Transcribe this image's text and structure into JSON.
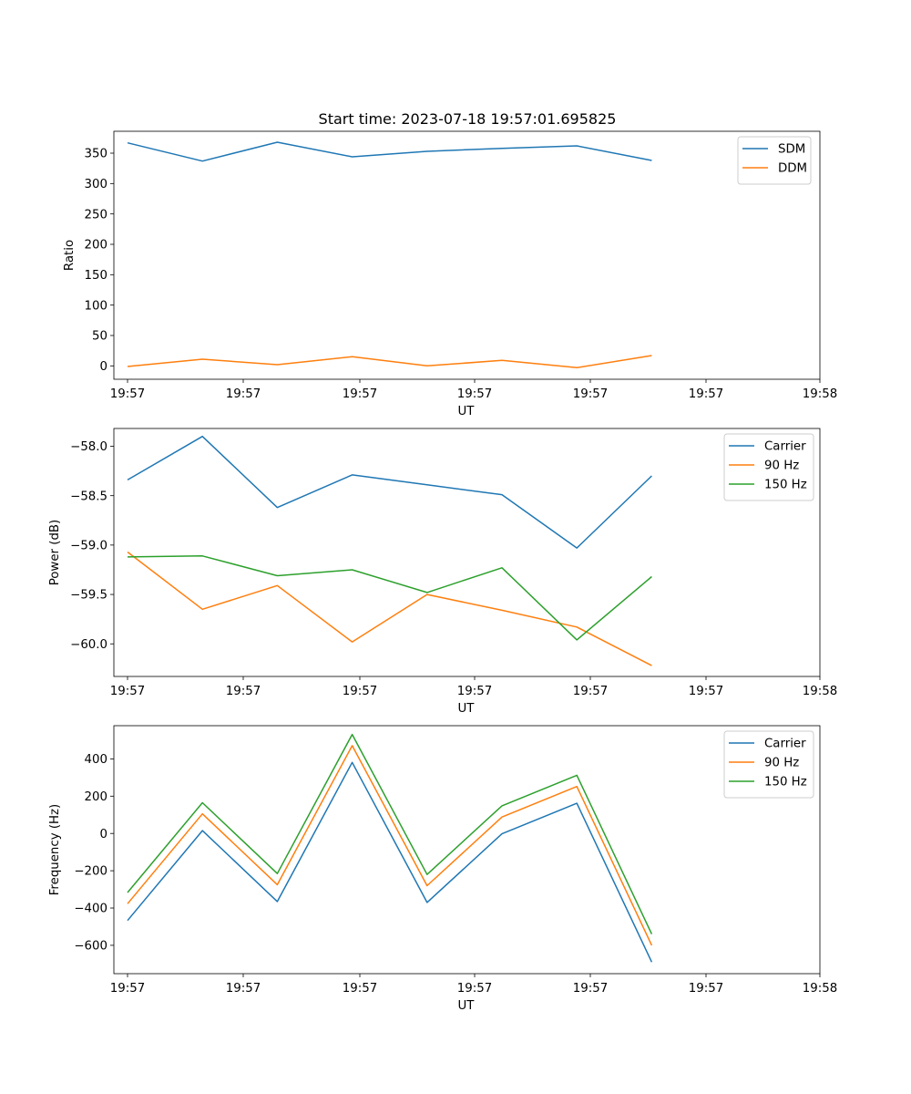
{
  "figure_title": "Start time: 2023-07-18 19:57:01.695825",
  "chart_data": [
    {
      "type": "line",
      "title": "Start time: 2023-07-18 19:57:01.695825",
      "xlabel": "UT",
      "ylabel": "Ratio",
      "x_tick_labels": [
        "19:57",
        "19:57",
        "19:57",
        "19:57",
        "19:57",
        "19:57",
        "19:58"
      ],
      "y_ticks": [
        0,
        50,
        100,
        150,
        200,
        250,
        300,
        350
      ],
      "y_tick_labels": [
        "0",
        "50",
        "100",
        "150",
        "200",
        "250",
        "300",
        "350"
      ],
      "ylim": [
        -22,
        386
      ],
      "x": [
        1,
        2,
        3,
        4,
        5,
        6,
        7,
        8
      ],
      "series": [
        {
          "name": "SDM",
          "color": "#1f77b4",
          "values": [
            367,
            337,
            368,
            344,
            353,
            358,
            362,
            338
          ]
        },
        {
          "name": "DDM",
          "color": "#ff7f0e",
          "values": [
            -1,
            11,
            2,
            15,
            0,
            9,
            -3,
            17
          ]
        }
      ],
      "legend": "top-right"
    },
    {
      "type": "line",
      "title": "",
      "xlabel": "UT",
      "ylabel": "Power (dB)",
      "x_tick_labels": [
        "19:57",
        "19:57",
        "19:57",
        "19:57",
        "19:57",
        "19:57",
        "19:58"
      ],
      "y_ticks": [
        -58.0,
        -58.5,
        -59.0,
        -59.5,
        -60.0
      ],
      "y_tick_labels": [
        "−58.0",
        "−58.5",
        "−59.0",
        "−59.5",
        "−60.0"
      ],
      "ylim": [
        -60.33,
        -57.82
      ],
      "x": [
        1,
        2,
        3,
        4,
        5,
        6,
        7,
        8
      ],
      "series": [
        {
          "name": "Carrier",
          "color": "#1f77b4",
          "values": [
            -58.34,
            -57.9,
            -58.62,
            -58.29,
            -58.39,
            -58.49,
            -59.03,
            -58.3
          ]
        },
        {
          "name": "90 Hz",
          "color": "#ff7f0e",
          "values": [
            -59.07,
            -59.65,
            -59.41,
            -59.98,
            -59.5,
            -59.66,
            -59.83,
            -60.22
          ]
        },
        {
          "name": "150 Hz",
          "color": "#2ca02c",
          "values": [
            -59.12,
            -59.11,
            -59.31,
            -59.25,
            -59.48,
            -59.23,
            -59.96,
            -59.32
          ]
        }
      ],
      "legend": "top-right"
    },
    {
      "type": "line",
      "title": "",
      "xlabel": "UT",
      "ylabel": "Frequency (Hz)",
      "x_tick_labels": [
        "19:57",
        "19:57",
        "19:57",
        "19:57",
        "19:57",
        "19:57",
        "19:58"
      ],
      "y_ticks": [
        -600,
        -400,
        -200,
        0,
        200,
        400
      ],
      "y_tick_labels": [
        "−600",
        "−400",
        "−200",
        "0",
        "200",
        "400"
      ],
      "ylim": [
        -752,
        578
      ],
      "x": [
        1,
        2,
        3,
        4,
        5,
        6,
        7,
        8
      ],
      "series": [
        {
          "name": "Carrier",
          "color": "#1f77b4",
          "values": [
            -467,
            15,
            -365,
            381,
            -370,
            -2,
            162,
            -690
          ]
        },
        {
          "name": "90 Hz",
          "color": "#ff7f0e",
          "values": [
            -377,
            105,
            -275,
            471,
            -280,
            88,
            252,
            -600
          ]
        },
        {
          "name": "150 Hz",
          "color": "#2ca02c",
          "values": [
            -317,
            165,
            -215,
            531,
            -220,
            148,
            312,
            -540
          ]
        }
      ],
      "legend": "top-right"
    }
  ]
}
